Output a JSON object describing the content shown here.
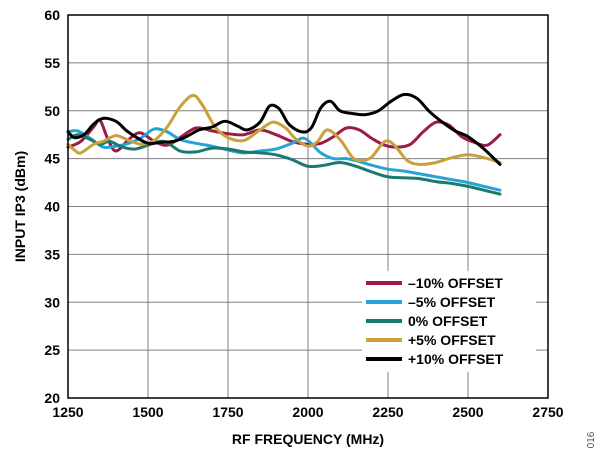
{
  "chart_data": {
    "type": "line",
    "xlabel": "RF FREQUENCY (MHz)",
    "ylabel": "INPUT IP3 (dBm)",
    "xlim": [
      1250,
      2750
    ],
    "ylim": [
      20,
      60
    ],
    "xticks": [
      1250,
      1500,
      1750,
      2000,
      2250,
      2500,
      2750
    ],
    "yticks": [
      20,
      25,
      30,
      35,
      40,
      45,
      50,
      55,
      60
    ],
    "grid": true,
    "legend_position": "bottom-right",
    "figure_id": "016",
    "series": [
      {
        "name": "–10% OFFSET",
        "color": "#9b1c45",
        "points": [
          [
            1250,
            46.2
          ],
          [
            1290,
            46.8
          ],
          [
            1330,
            48.3
          ],
          [
            1350,
            49.0
          ],
          [
            1375,
            47.0
          ],
          [
            1400,
            45.8
          ],
          [
            1440,
            47.0
          ],
          [
            1475,
            47.7
          ],
          [
            1520,
            46.8
          ],
          [
            1560,
            46.4
          ],
          [
            1600,
            47.2
          ],
          [
            1650,
            48.2
          ],
          [
            1700,
            47.9
          ],
          [
            1750,
            47.6
          ],
          [
            1800,
            47.5
          ],
          [
            1850,
            48.0
          ],
          [
            1900,
            47.5
          ],
          [
            1950,
            46.8
          ],
          [
            2000,
            46.5
          ],
          [
            2040,
            46.6
          ],
          [
            2080,
            47.3
          ],
          [
            2120,
            48.2
          ],
          [
            2160,
            48.0
          ],
          [
            2200,
            47.1
          ],
          [
            2240,
            46.4
          ],
          [
            2280,
            46.2
          ],
          [
            2320,
            46.5
          ],
          [
            2360,
            47.8
          ],
          [
            2400,
            48.8
          ],
          [
            2440,
            48.5
          ],
          [
            2480,
            47.3
          ],
          [
            2520,
            46.7
          ],
          [
            2560,
            46.4
          ],
          [
            2600,
            47.5
          ]
        ]
      },
      {
        "name": "–5% OFFSET",
        "color": "#27a3d6",
        "points": [
          [
            1250,
            47.8
          ],
          [
            1280,
            47.9
          ],
          [
            1320,
            47.1
          ],
          [
            1360,
            46.2
          ],
          [
            1400,
            46.3
          ],
          [
            1440,
            46.6
          ],
          [
            1480,
            47.2
          ],
          [
            1520,
            48.1
          ],
          [
            1560,
            47.8
          ],
          [
            1600,
            47.0
          ],
          [
            1650,
            46.6
          ],
          [
            1700,
            46.3
          ],
          [
            1750,
            45.9
          ],
          [
            1800,
            45.6
          ],
          [
            1850,
            45.8
          ],
          [
            1900,
            46.0
          ],
          [
            1950,
            46.6
          ],
          [
            1990,
            47.1
          ],
          [
            2040,
            45.6
          ],
          [
            2080,
            45.0
          ],
          [
            2120,
            45.0
          ],
          [
            2160,
            44.7
          ],
          [
            2200,
            44.3
          ],
          [
            2250,
            43.9
          ],
          [
            2300,
            43.7
          ],
          [
            2350,
            43.4
          ],
          [
            2400,
            43.1
          ],
          [
            2450,
            42.8
          ],
          [
            2500,
            42.5
          ],
          [
            2550,
            42.1
          ],
          [
            2600,
            41.7
          ]
        ]
      },
      {
        "name": "0% OFFSET",
        "color": "#1b7a6e",
        "points": [
          [
            1250,
            47.0
          ],
          [
            1280,
            47.5
          ],
          [
            1320,
            47.0
          ],
          [
            1350,
            46.5
          ],
          [
            1380,
            46.8
          ],
          [
            1420,
            46.2
          ],
          [
            1460,
            46.0
          ],
          [
            1500,
            46.4
          ],
          [
            1550,
            46.8
          ],
          [
            1600,
            45.8
          ],
          [
            1650,
            45.7
          ],
          [
            1700,
            46.1
          ],
          [
            1750,
            46.0
          ],
          [
            1800,
            45.7
          ],
          [
            1850,
            45.6
          ],
          [
            1900,
            45.4
          ],
          [
            1950,
            44.9
          ],
          [
            2000,
            44.2
          ],
          [
            2050,
            44.3
          ],
          [
            2100,
            44.6
          ],
          [
            2150,
            44.2
          ],
          [
            2200,
            43.6
          ],
          [
            2250,
            43.1
          ],
          [
            2300,
            43.0
          ],
          [
            2350,
            42.9
          ],
          [
            2400,
            42.6
          ],
          [
            2450,
            42.4
          ],
          [
            2500,
            42.1
          ],
          [
            2550,
            41.7
          ],
          [
            2600,
            41.3
          ]
        ]
      },
      {
        "name": "+5% OFFSET",
        "color": "#c9a03c",
        "points": [
          [
            1250,
            46.5
          ],
          [
            1270,
            45.9
          ],
          [
            1290,
            45.6
          ],
          [
            1330,
            46.5
          ],
          [
            1360,
            46.8
          ],
          [
            1400,
            47.4
          ],
          [
            1440,
            46.9
          ],
          [
            1480,
            46.5
          ],
          [
            1520,
            46.9
          ],
          [
            1560,
            48.3
          ],
          [
            1600,
            50.4
          ],
          [
            1640,
            51.6
          ],
          [
            1670,
            50.6
          ],
          [
            1710,
            48.3
          ],
          [
            1750,
            47.2
          ],
          [
            1800,
            46.9
          ],
          [
            1850,
            48.0
          ],
          [
            1890,
            48.8
          ],
          [
            1930,
            48.2
          ],
          [
            1960,
            47.1
          ],
          [
            2000,
            46.3
          ],
          [
            2030,
            46.8
          ],
          [
            2060,
            48.0
          ],
          [
            2100,
            47.0
          ],
          [
            2140,
            45.1
          ],
          [
            2170,
            44.8
          ],
          [
            2200,
            45.2
          ],
          [
            2240,
            46.8
          ],
          [
            2270,
            46.4
          ],
          [
            2310,
            44.8
          ],
          [
            2350,
            44.4
          ],
          [
            2400,
            44.6
          ],
          [
            2450,
            45.1
          ],
          [
            2500,
            45.4
          ],
          [
            2550,
            45.1
          ],
          [
            2600,
            44.6
          ]
        ]
      },
      {
        "name": "+10% OFFSET",
        "color": "#000000",
        "points": [
          [
            1250,
            47.8
          ],
          [
            1270,
            47.2
          ],
          [
            1300,
            47.5
          ],
          [
            1330,
            48.6
          ],
          [
            1360,
            49.2
          ],
          [
            1400,
            48.9
          ],
          [
            1430,
            48.0
          ],
          [
            1460,
            47.3
          ],
          [
            1500,
            46.6
          ],
          [
            1540,
            46.7
          ],
          [
            1580,
            46.8
          ],
          [
            1620,
            47.3
          ],
          [
            1660,
            48.0
          ],
          [
            1700,
            48.3
          ],
          [
            1740,
            48.9
          ],
          [
            1780,
            48.4
          ],
          [
            1810,
            48.0
          ],
          [
            1850,
            48.8
          ],
          [
            1880,
            50.5
          ],
          [
            1910,
            50.2
          ],
          [
            1940,
            48.6
          ],
          [
            1980,
            47.8
          ],
          [
            2010,
            48.2
          ],
          [
            2040,
            50.3
          ],
          [
            2070,
            51.0
          ],
          [
            2100,
            50.0
          ],
          [
            2140,
            49.7
          ],
          [
            2180,
            49.6
          ],
          [
            2220,
            50.0
          ],
          [
            2260,
            51.0
          ],
          [
            2300,
            51.7
          ],
          [
            2340,
            51.3
          ],
          [
            2380,
            49.9
          ],
          [
            2420,
            48.8
          ],
          [
            2460,
            47.9
          ],
          [
            2500,
            47.3
          ],
          [
            2550,
            46.0
          ],
          [
            2600,
            44.4
          ]
        ]
      }
    ]
  }
}
